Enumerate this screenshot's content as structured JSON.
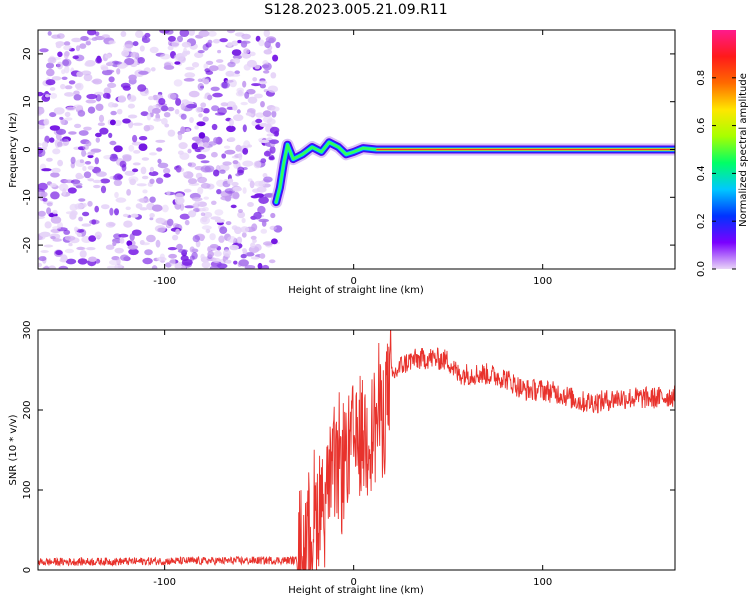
{
  "title": "S128.2023.005.21.09.R11",
  "chart_data": [
    {
      "type": "heatmap",
      "xlabel": "Height of straight line (km)",
      "ylabel": "Frequency (Hz)",
      "xlim": [
        -167,
        170
      ],
      "ylim": [
        -25,
        25
      ],
      "x_ticks": [
        -100,
        0,
        100
      ],
      "y_ticks": [
        -20,
        -10,
        0,
        10,
        20
      ],
      "colorbar": {
        "label": "Normalized spectral amplitude",
        "range": [
          0.0,
          1.0
        ],
        "ticks": [
          "0.0",
          "0.2",
          "0.4",
          "0.6",
          "0.8"
        ],
        "colormap": [
          "#e9d5f7",
          "#7a00ff",
          "#0033ff",
          "#00c8ff",
          "#00ff66",
          "#a8ff00",
          "#ffe600",
          "#ff6a00",
          "#ff1a1a",
          "#ff1a8c"
        ]
      },
      "noise_region_x": [
        -167,
        -40
      ],
      "signal_track": [
        {
          "x": -41,
          "y": -11
        },
        {
          "x": -39,
          "y": -8
        },
        {
          "x": -37,
          "y": -3
        },
        {
          "x": -35,
          "y": 1
        },
        {
          "x": -32,
          "y": -2
        },
        {
          "x": -27,
          "y": -1
        },
        {
          "x": -22,
          "y": 0.5
        },
        {
          "x": -17,
          "y": -0.5
        },
        {
          "x": -13,
          "y": 1.5
        },
        {
          "x": -8,
          "y": 0.5
        },
        {
          "x": -4,
          "y": -1
        },
        {
          "x": 0,
          "y": -0.5
        },
        {
          "x": 5,
          "y": 0.3
        },
        {
          "x": 12,
          "y": 0
        },
        {
          "x": 20,
          "y": 0
        },
        {
          "x": 170,
          "y": 0
        }
      ]
    },
    {
      "type": "line",
      "xlabel": "Height of straight line (km)",
      "ylabel": "SNR (10 * v/v)",
      "xlim": [
        -167,
        170
      ],
      "ylim": [
        0,
        300
      ],
      "x_ticks": [
        -100,
        0,
        100
      ],
      "y_ticks": [
        0,
        100,
        200,
        300
      ],
      "color": "#e8322c",
      "series": [
        {
          "x": [
            -167,
            -40,
            -30,
            -25,
            -20,
            -15,
            -10,
            -5,
            0,
            5,
            10,
            15,
            20,
            25,
            30,
            40,
            50,
            55,
            60,
            70,
            80,
            90,
            100,
            110,
            120,
            130,
            140,
            150,
            160,
            170
          ],
          "values": [
            10,
            12,
            12,
            35,
            70,
            100,
            120,
            140,
            160,
            170,
            180,
            200,
            240,
            255,
            262,
            265,
            262,
            245,
            245,
            245,
            240,
            225,
            225,
            220,
            210,
            210,
            215,
            215,
            215,
            218
          ]
        }
      ]
    }
  ]
}
